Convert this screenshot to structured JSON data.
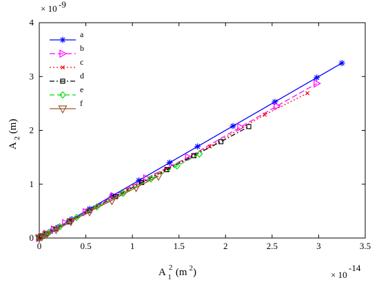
{
  "chart_data": {
    "type": "line",
    "title": "",
    "xlabel": "A_1^2 (m^2)",
    "ylabel": "A_2 (m)",
    "x_exponent": "10",
    "x_exponent_power": "-14",
    "y_exponent": "10",
    "y_exponent_power": "-9",
    "xlim": [
      0,
      3.5
    ],
    "ylim": [
      0,
      4
    ],
    "xticks": [
      "0",
      "0.5",
      "1",
      "1.5",
      "2",
      "2.5",
      "3",
      "3.5"
    ],
    "yticks": [
      "0",
      "1",
      "2",
      "3",
      "4"
    ],
    "grid": false,
    "legend_position": "top-left",
    "series": [
      {
        "name": "a",
        "color": "#0000ff",
        "dash": "",
        "marker": "star",
        "x": [
          0,
          0.02,
          0.06,
          0.12,
          0.2,
          0.35,
          0.54,
          0.78,
          1.07,
          1.4,
          1.7,
          2.08,
          2.53,
          2.98,
          3.25
        ],
        "y": [
          0,
          0.035,
          0.07,
          0.12,
          0.2,
          0.35,
          0.54,
          0.78,
          1.07,
          1.4,
          1.7,
          2.08,
          2.53,
          2.98,
          3.25
        ]
      },
      {
        "name": "b",
        "color": "#ff00ff",
        "dash": "8,4",
        "marker": "triangle-right",
        "x": [
          0,
          0.03,
          0.08,
          0.16,
          0.28,
          0.5,
          0.8,
          1.15,
          1.6,
          2.16,
          2.55,
          2.98
        ],
        "y": [
          0,
          0.03,
          0.08,
          0.16,
          0.28,
          0.48,
          0.78,
          1.11,
          1.5,
          2.06,
          2.45,
          2.87
        ]
      },
      {
        "name": "c",
        "color": "#ff0000",
        "dash": "2,3",
        "marker": "x",
        "x": [
          0,
          0.04,
          0.1,
          0.2,
          0.35,
          0.6,
          0.95,
          1.37,
          1.83,
          2.42,
          2.88
        ],
        "y": [
          0,
          0.04,
          0.1,
          0.19,
          0.33,
          0.57,
          0.9,
          1.29,
          1.7,
          2.29,
          2.69
        ]
      },
      {
        "name": "d",
        "color": "#000000",
        "dash": "7,3,2,3",
        "marker": "square",
        "x": [
          0,
          0.03,
          0.08,
          0.18,
          0.32,
          0.54,
          0.82,
          1.1,
          1.37,
          1.66,
          1.95,
          2.25
        ],
        "y": [
          0,
          0.03,
          0.08,
          0.17,
          0.3,
          0.51,
          0.77,
          1.03,
          1.27,
          1.53,
          1.79,
          2.07
        ]
      },
      {
        "name": "e",
        "color": "#00dd00",
        "dash": "7,4",
        "marker": "diamond",
        "x": [
          0,
          0.04,
          0.1,
          0.22,
          0.4,
          0.62,
          0.9,
          1.2,
          1.48,
          1.72
        ],
        "y": [
          0,
          0.04,
          0.1,
          0.21,
          0.38,
          0.58,
          0.83,
          1.1,
          1.34,
          1.56
        ]
      },
      {
        "name": "f",
        "color": "#a0522d",
        "dash": "",
        "marker": "triangle-down",
        "x": [
          0,
          0.03,
          0.08,
          0.18,
          0.34,
          0.54,
          0.78,
          1.04,
          1.28
        ],
        "y": [
          0,
          0.03,
          0.07,
          0.16,
          0.31,
          0.49,
          0.7,
          0.94,
          1.15
        ]
      }
    ]
  }
}
